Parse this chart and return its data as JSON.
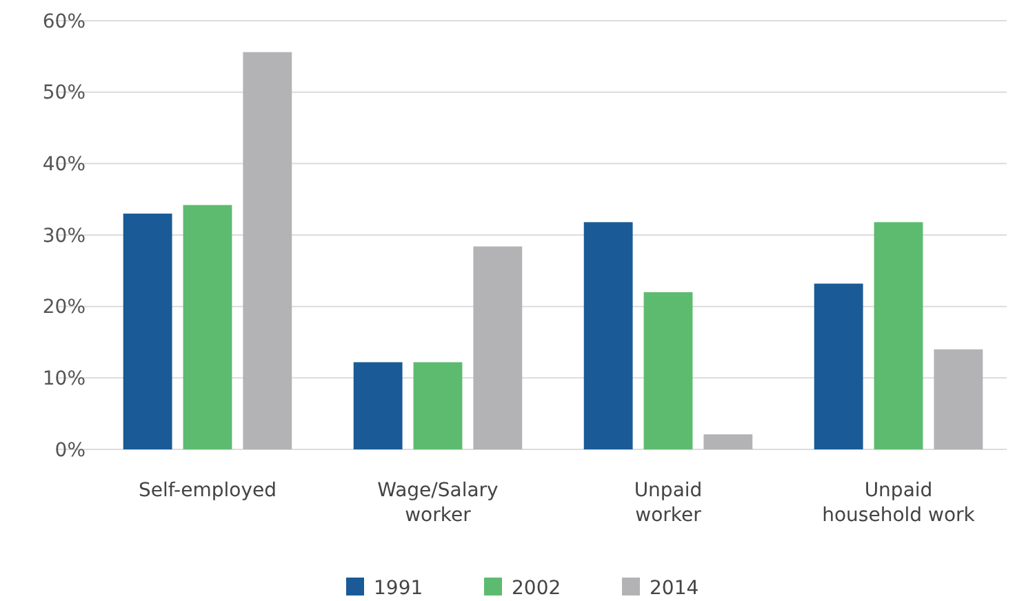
{
  "chart_data": {
    "type": "bar",
    "categories": [
      "Self-employed",
      "Wage/Salary\nworker",
      "Unpaid\nworker",
      "Unpaid\nhousehold work"
    ],
    "series": [
      {
        "name": "1991",
        "color": "#1a5a96",
        "values": [
          33,
          12.2,
          31.8,
          23.2
        ]
      },
      {
        "name": "2002",
        "color": "#5dbb6f",
        "values": [
          34.2,
          12.2,
          22,
          31.8
        ]
      },
      {
        "name": "2014",
        "color": "#b3b3b5",
        "values": [
          55.6,
          28.4,
          2.1,
          14
        ]
      }
    ],
    "ylim": [
      0,
      60
    ],
    "yticks": [
      {
        "value": 0,
        "label": "0%"
      },
      {
        "value": 10,
        "label": "10%"
      },
      {
        "value": 20,
        "label": "20%"
      },
      {
        "value": 30,
        "label": "30%"
      },
      {
        "value": 40,
        "label": "40%"
      },
      {
        "value": 50,
        "label": "50%"
      },
      {
        "value": 60,
        "label": "60%"
      }
    ],
    "grid": "y",
    "legend": "bottom"
  }
}
